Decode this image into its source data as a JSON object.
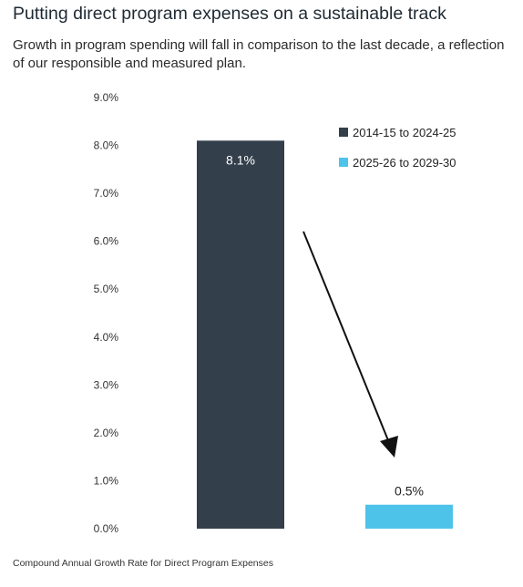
{
  "chart_data": {
    "type": "bar",
    "title": "Putting direct program expenses on a sustainable track",
    "subtitle": "Growth in program spending will fall in comparison to the last decade, a reflection of our responsible and measured plan.",
    "categories": [
      "2014-15 to 2024-25",
      "2025-26 to 2029-30"
    ],
    "values": [
      8.1,
      0.5
    ],
    "data_labels": [
      "8.1%",
      "0.5%"
    ],
    "colors": [
      "#333f4b",
      "#4dc3ea"
    ],
    "ylim": [
      0,
      9
    ],
    "yticks": [
      "0.0%",
      "1.0%",
      "2.0%",
      "3.0%",
      "4.0%",
      "5.0%",
      "6.0%",
      "7.0%",
      "8.0%",
      "9.0%"
    ],
    "legend": {
      "position": "top-right",
      "entries": [
        {
          "label": "2014-15 to 2024-25",
          "color": "#333f4b"
        },
        {
          "label": "2025-26 to 2029-30",
          "color": "#4dc3ea"
        }
      ]
    },
    "grid": false,
    "annotation": "downward-arrow",
    "footnote": "Compound Annual Growth Rate for Direct Program Expenses"
  }
}
